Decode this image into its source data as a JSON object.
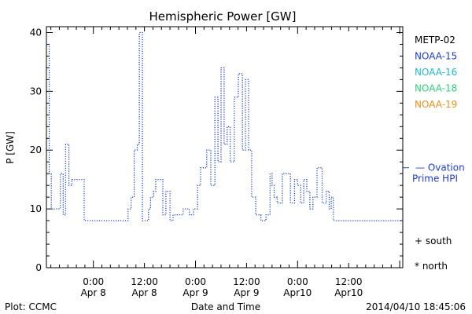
{
  "chart_data": {
    "type": "line",
    "title": "Hemispheric Power [GW]",
    "xlabel": "Date and Time",
    "ylabel": "P [GW]",
    "ylim": [
      0,
      41
    ],
    "yticks": [
      0,
      10,
      20,
      30,
      40
    ],
    "xlim": [
      -0.23,
      1.515
    ],
    "xticks": [
      {
        "x": 0.0,
        "line1": "0:00",
        "line2": "Apr 8"
      },
      {
        "x": 0.25,
        "line1": "12:00",
        "line2": "Apr 8"
      },
      {
        "x": 0.5,
        "line1": "0:00",
        "line2": "Apr 9"
      },
      {
        "x": 0.75,
        "line1": "12:00",
        "line2": "Apr 9"
      },
      {
        "x": 1.0,
        "line1": "0:00",
        "line2": "Apr10"
      },
      {
        "x": 1.25,
        "line1": "12:00",
        "line2": "Apr10"
      }
    ],
    "x_unit_note_days_since": "2014-04-08 00:00",
    "legend_placement": "right",
    "legend": [
      {
        "name": "METP-02",
        "color": "#000000"
      },
      {
        "name": "NOAA-15",
        "color": "#1f3fd1"
      },
      {
        "name": "NOAA-16",
        "color": "#1fb8d8"
      },
      {
        "name": "NOAA-18",
        "color": "#2ad37a"
      },
      {
        "name": "NOAA-19",
        "color": "#f08c1a"
      }
    ],
    "reference": {
      "name": "Ovation Prime HPI",
      "value": 17,
      "label": "— Ovation",
      "label2": "Prime HPI",
      "color": "#1f3fd1"
    },
    "markers_legend": [
      {
        "symbol": "+",
        "label": "south"
      },
      {
        "symbol": "*",
        "label": "north"
      }
    ],
    "series": [
      {
        "name": "Ovation Prime HPI",
        "color": "#1f3fd1",
        "style": "step-dotted",
        "x": [
          -0.23,
          -0.216,
          -0.206,
          -0.18,
          -0.162,
          -0.148,
          -0.136,
          -0.12,
          -0.105,
          -0.08,
          -0.045,
          -0.015,
          0.0,
          0.005,
          0.02,
          0.03,
          0.045,
          0.06,
          0.075,
          0.095,
          0.105,
          0.125,
          0.14,
          0.17,
          0.185,
          0.2,
          0.215,
          0.225,
          0.24,
          0.255,
          0.27,
          0.28,
          0.295,
          0.305,
          0.34,
          0.355,
          0.375,
          0.39,
          0.41,
          0.425,
          0.44,
          0.47,
          0.49,
          0.51,
          0.525,
          0.555,
          0.575,
          0.595,
          0.61,
          0.625,
          0.64,
          0.655,
          0.67,
          0.69,
          0.71,
          0.73,
          0.745,
          0.76,
          0.775,
          0.785,
          0.795,
          0.805,
          0.82,
          0.845,
          0.865,
          0.875,
          0.885,
          0.9,
          0.925,
          0.945,
          0.965,
          0.985,
          1.0,
          1.015,
          1.03,
          1.045,
          1.06,
          1.075,
          1.095,
          1.12,
          1.14,
          1.155,
          1.165,
          1.175,
          1.2,
          1.22,
          1.24,
          1.26,
          1.275,
          1.285,
          1.3,
          1.32,
          1.345,
          1.36,
          1.38,
          1.4,
          1.415,
          1.43,
          1.45,
          1.465,
          1.475,
          1.49,
          1.505,
          1.515
        ],
        "values": [
          38,
          16,
          10,
          10,
          16,
          9,
          21,
          14,
          15,
          15,
          8,
          8,
          8,
          8,
          8,
          8,
          8,
          8,
          8,
          8,
          8,
          8,
          8,
          10,
          12,
          20,
          21,
          40,
          8,
          8,
          10,
          12,
          13,
          15,
          9,
          13,
          8,
          9,
          9,
          9,
          10,
          9,
          10,
          14,
          17,
          20,
          14,
          29,
          18,
          34,
          21,
          24,
          18,
          29,
          33,
          20,
          32,
          20,
          12,
          12,
          9,
          9,
          8,
          9,
          16,
          14,
          12,
          11,
          16,
          16,
          11,
          15,
          14,
          11,
          15,
          13,
          10,
          12,
          17,
          11,
          13,
          10,
          12,
          8,
          8,
          8,
          8,
          8,
          8,
          8,
          8,
          8,
          8,
          8,
          8,
          8,
          8,
          8,
          8,
          8,
          8,
          8,
          8,
          8
        ]
      }
    ],
    "footer": {
      "left": "Plot: CCMC",
      "center": "Date and Time",
      "right": "2014/04/10 18:45:06"
    }
  }
}
